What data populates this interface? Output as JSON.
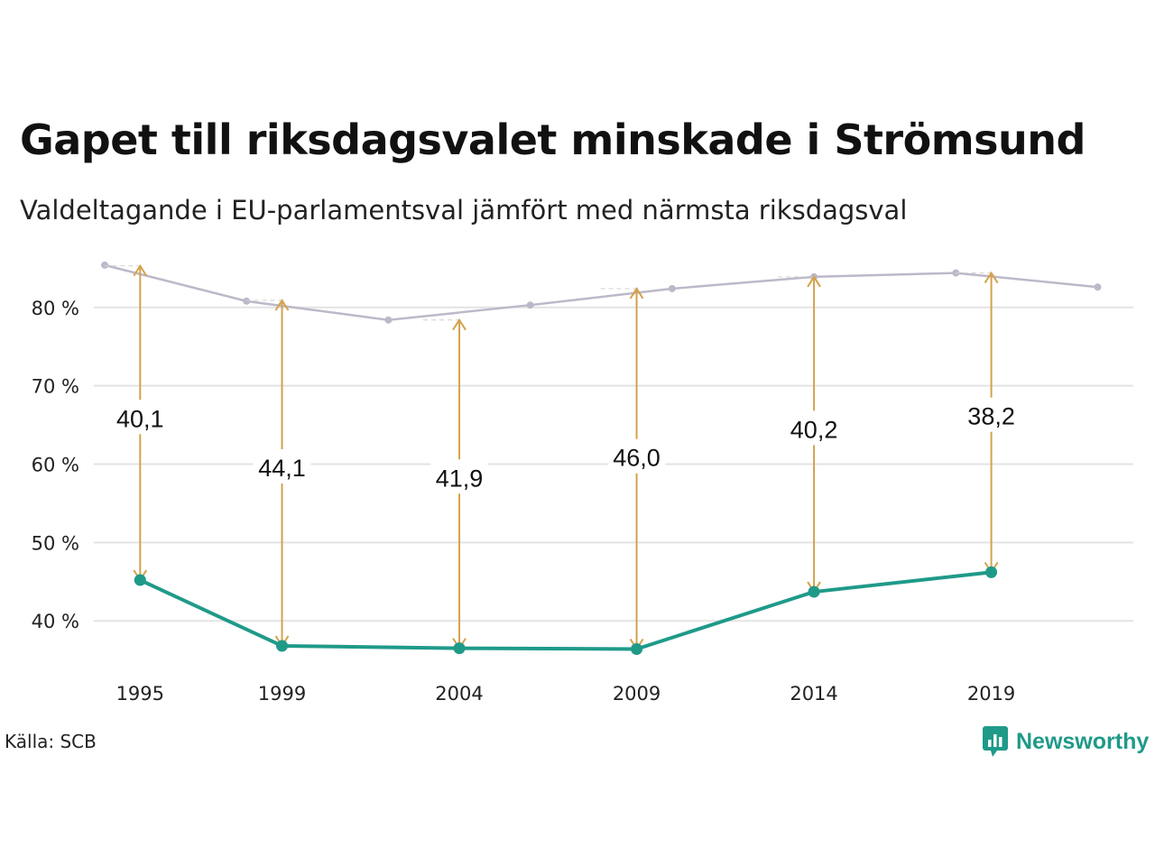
{
  "title": "Gapet till riksdagsvalet minskade i Strömsund",
  "subtitle": "Valdeltagande i EU-parlamentsval jämfört med närmsta riksdagsval",
  "source": "Källa: SCB",
  "brand": {
    "name": "Newsworthy",
    "icon": "newsworthy-logo-icon"
  },
  "colors": {
    "eu": "#1f9a89",
    "riksdag": "#bdb8c9",
    "arrow": "#d4a24c",
    "grid": "#e3e3e3"
  },
  "chart_data": {
    "type": "line",
    "ylim": [
      33,
      87
    ],
    "yticks": [
      {
        "value": 40,
        "label": "40 %"
      },
      {
        "value": 50,
        "label": "50 %"
      },
      {
        "value": 60,
        "label": "60 %"
      },
      {
        "value": 70,
        "label": "70 %"
      },
      {
        "value": 80,
        "label": "80 %"
      }
    ],
    "xticks": [
      {
        "value": 1995,
        "label": "1995"
      },
      {
        "value": 1999,
        "label": "1999"
      },
      {
        "value": 2004,
        "label": "2004"
      },
      {
        "value": 2009,
        "label": "2009"
      },
      {
        "value": 2014,
        "label": "2014"
      },
      {
        "value": 2019,
        "label": "2019"
      }
    ],
    "xlim": [
      1994,
      2022.7
    ],
    "series": [
      {
        "key": "riksdag",
        "points": [
          {
            "x": 1994,
            "y": 85.4
          },
          {
            "x": 1998,
            "y": 80.8
          },
          {
            "x": 2002,
            "y": 78.4
          },
          {
            "x": 2006,
            "y": 80.3
          },
          {
            "x": 2010,
            "y": 82.4
          },
          {
            "x": 2014,
            "y": 83.9
          },
          {
            "x": 2018,
            "y": 84.4
          },
          {
            "x": 2022,
            "y": 82.6
          }
        ]
      },
      {
        "key": "eu",
        "points": [
          {
            "x": 1995,
            "y": 45.2
          },
          {
            "x": 1999,
            "y": 36.8
          },
          {
            "x": 2004,
            "y": 36.5
          },
          {
            "x": 2009,
            "y": 36.4
          },
          {
            "x": 2014,
            "y": 43.7
          },
          {
            "x": 2019,
            "y": 46.2
          }
        ]
      }
    ],
    "gaps": [
      {
        "x": 1995,
        "from": 45.2,
        "to": 85.3,
        "label": "40,1",
        "label_y": 65.9
      },
      {
        "x": 1999,
        "from": 36.8,
        "to": 80.9,
        "label": "44,1",
        "label_y": 59.6
      },
      {
        "x": 2004,
        "from": 36.5,
        "to": 78.4,
        "label": "41,9",
        "label_y": 58.3
      },
      {
        "x": 2009,
        "from": 36.4,
        "to": 82.4,
        "label": "46,0",
        "label_y": 60.9
      },
      {
        "x": 2014,
        "from": 43.7,
        "to": 83.9,
        "label": "40,2",
        "label_y": 64.5
      },
      {
        "x": 2019,
        "from": 46.2,
        "to": 84.4,
        "label": "38,2",
        "label_y": 66.2
      }
    ]
  }
}
